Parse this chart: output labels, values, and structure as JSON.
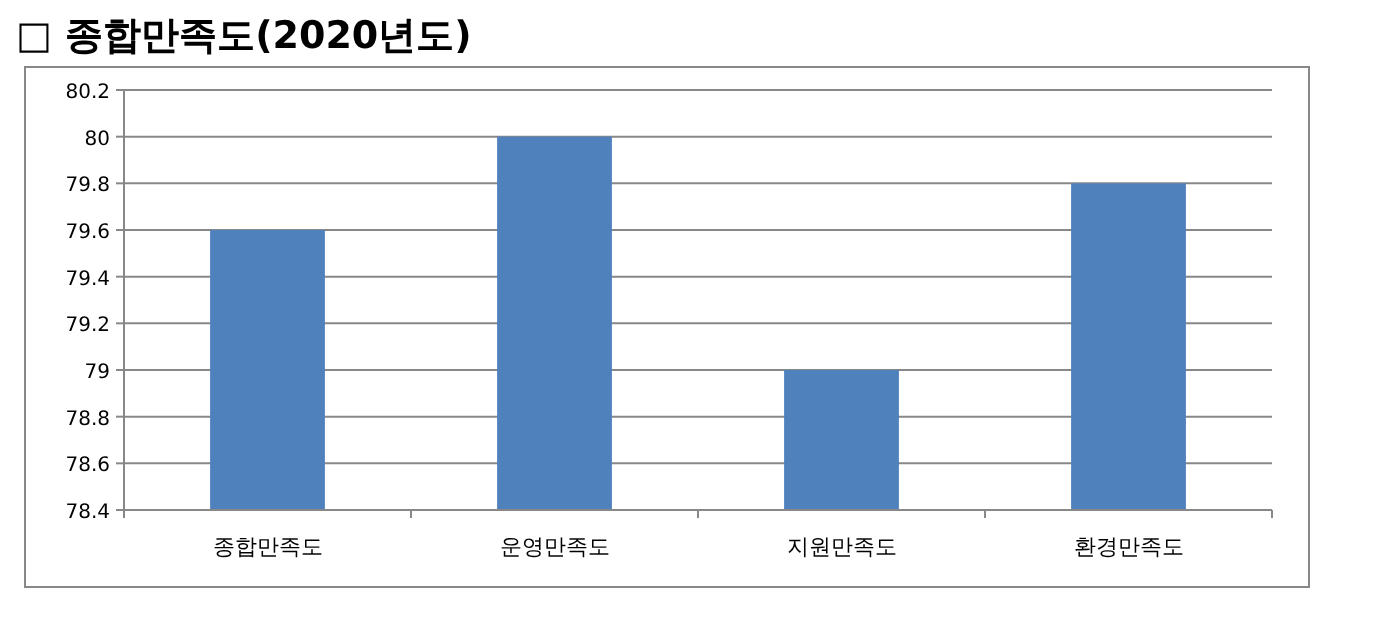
{
  "chart_data": {
    "type": "bar",
    "title": "□ 종합만족도(2020년도)",
    "categories": [
      "종합만족도",
      "운영만족도",
      "지원만족도",
      "환경만족도"
    ],
    "values": [
      79.6,
      80,
      79,
      79.8
    ],
    "color": "#4f81bd",
    "ylim": [
      78.4,
      80.2
    ],
    "yticks": [
      78.4,
      78.6,
      78.8,
      79,
      79.2,
      79.4,
      79.6,
      79.8,
      80,
      80.2
    ],
    "grid": "y"
  }
}
